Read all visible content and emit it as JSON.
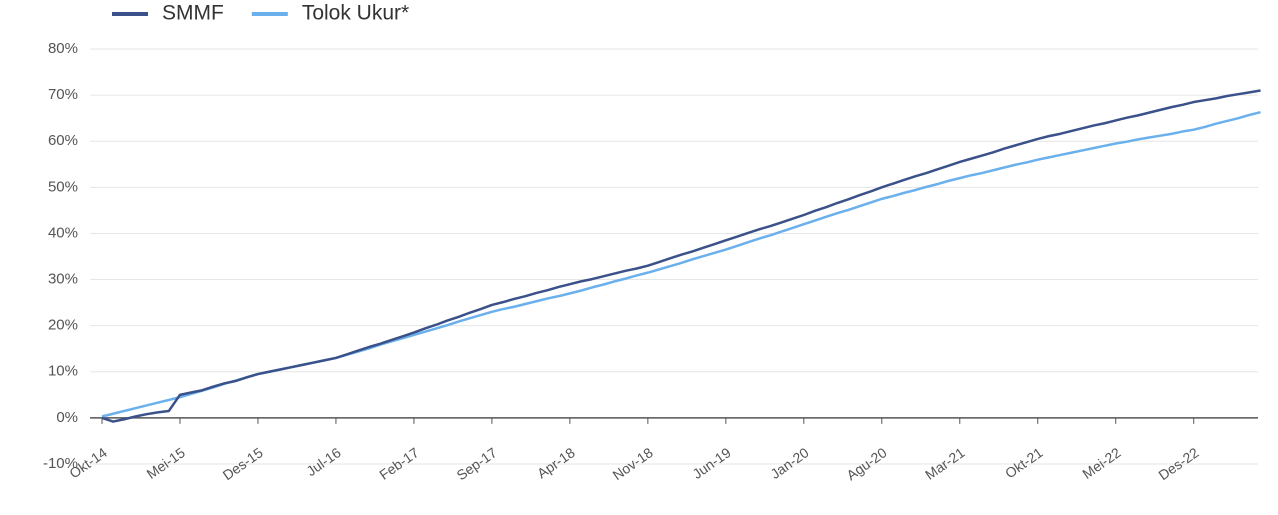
{
  "chart_data": {
    "type": "line",
    "categories": [
      "Okt-14",
      null,
      null,
      null,
      null,
      null,
      null,
      "Mei-15",
      null,
      null,
      null,
      null,
      null,
      null,
      "Des-15",
      null,
      null,
      null,
      null,
      null,
      null,
      "Jul-16",
      null,
      null,
      null,
      null,
      null,
      null,
      "Feb-17",
      null,
      null,
      null,
      null,
      null,
      null,
      "Sep-17",
      null,
      null,
      null,
      null,
      null,
      null,
      "Apr-18",
      null,
      null,
      null,
      null,
      null,
      null,
      "Nov-18",
      null,
      null,
      null,
      null,
      null,
      null,
      "Jun-19",
      null,
      null,
      null,
      null,
      null,
      null,
      "Jan-20",
      null,
      null,
      null,
      null,
      null,
      null,
      "Agu-20",
      null,
      null,
      null,
      null,
      null,
      null,
      "Mar-21",
      null,
      null,
      null,
      null,
      null,
      null,
      "Okt-21",
      null,
      null,
      null,
      null,
      null,
      null,
      "Mei-22",
      null,
      null,
      null,
      null,
      null,
      null,
      "Des-22",
      null,
      null,
      null,
      null,
      null,
      null
    ],
    "series": [
      {
        "name": "SMMF",
        "color": "#3a5189",
        "values": [
          0,
          -0.8,
          -0.3,
          0.3,
          0.8,
          1.2,
          1.5,
          5.0,
          5.5,
          6.0,
          6.8,
          7.5,
          8.0,
          8.8,
          9.5,
          10.0,
          10.5,
          11.0,
          11.5,
          12.0,
          12.5,
          13.0,
          13.8,
          14.6,
          15.4,
          16.1,
          16.9,
          17.7,
          18.5,
          19.4,
          20.2,
          21.1,
          21.9,
          22.8,
          23.6,
          24.5,
          25.1,
          25.8,
          26.4,
          27.1,
          27.7,
          28.4,
          29.0,
          29.6,
          30.1,
          30.7,
          31.3,
          31.9,
          32.4,
          33.0,
          33.8,
          34.6,
          35.4,
          36.1,
          36.9,
          37.7,
          38.5,
          39.3,
          40.1,
          40.9,
          41.6,
          42.4,
          43.2,
          44.0,
          44.9,
          45.7,
          46.6,
          47.4,
          48.3,
          49.1,
          50.0,
          50.8,
          51.6,
          52.4,
          53.1,
          53.9,
          54.7,
          55.5,
          56.2,
          56.9,
          57.6,
          58.4,
          59.1,
          59.8,
          60.5,
          61.1,
          61.6,
          62.2,
          62.8,
          63.4,
          63.9,
          64.5,
          65.1,
          65.6,
          66.2,
          66.8,
          67.4,
          67.9,
          68.5,
          68.9,
          69.3,
          69.8,
          70.2,
          70.6,
          71.0
        ]
      },
      {
        "name": "Tolok Ukur*",
        "color": "#6ab0ec",
        "values": [
          0.3,
          0.9,
          1.5,
          2.1,
          2.7,
          3.3,
          3.9,
          4.5,
          5.2,
          5.9,
          6.6,
          7.4,
          8.1,
          8.8,
          9.5,
          10.0,
          10.5,
          11.0,
          11.5,
          12.0,
          12.5,
          13.0,
          13.7,
          14.4,
          15.1,
          15.9,
          16.6,
          17.3,
          18.0,
          18.7,
          19.4,
          20.1,
          20.9,
          21.6,
          22.3,
          23.0,
          23.6,
          24.1,
          24.7,
          25.3,
          25.9,
          26.4,
          27.0,
          27.6,
          28.3,
          28.9,
          29.6,
          30.2,
          30.9,
          31.5,
          32.2,
          32.9,
          33.6,
          34.4,
          35.1,
          35.8,
          36.5,
          37.3,
          38.1,
          38.9,
          39.6,
          40.4,
          41.2,
          42.0,
          42.8,
          43.6,
          44.4,
          45.1,
          45.9,
          46.7,
          47.5,
          48.1,
          48.8,
          49.4,
          50.1,
          50.7,
          51.4,
          52.0,
          52.6,
          53.1,
          53.7,
          54.3,
          54.9,
          55.4,
          56.0,
          56.5,
          57.0,
          57.5,
          58.0,
          58.5,
          59.0,
          59.5,
          59.9,
          60.4,
          60.8,
          61.2,
          61.6,
          62.1,
          62.5,
          63.1,
          63.8,
          64.4,
          65.0,
          65.7,
          66.3
        ]
      }
    ],
    "ylim": [
      -10,
      80
    ],
    "yticks": [
      {
        "value": -10,
        "label": "-10%"
      },
      {
        "value": 0,
        "label": "0%"
      },
      {
        "value": 10,
        "label": "10%"
      },
      {
        "value": 20,
        "label": "20%"
      },
      {
        "value": 30,
        "label": "30%"
      },
      {
        "value": 40,
        "label": "40%"
      },
      {
        "value": 50,
        "label": "50%"
      },
      {
        "value": 60,
        "label": "60%"
      },
      {
        "value": 70,
        "label": "70%"
      },
      {
        "value": 80,
        "label": "80%"
      }
    ],
    "grid": true,
    "legend": "top"
  }
}
